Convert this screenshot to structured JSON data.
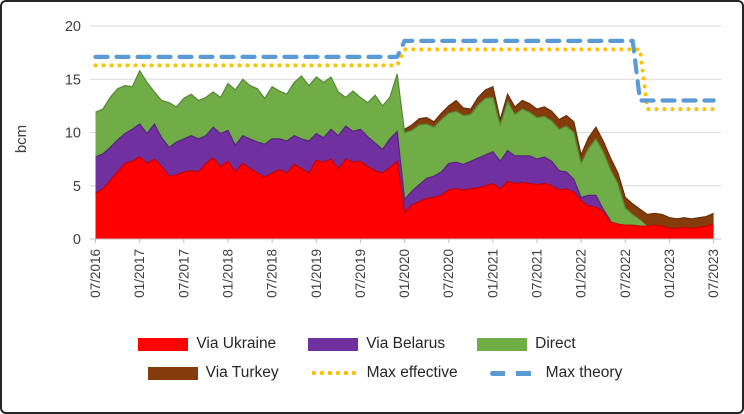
{
  "chart_data": {
    "type": "area",
    "stacked": true,
    "ylabel": "bcm",
    "ylim": [
      0,
      20
    ],
    "yticks": [
      0,
      5,
      10,
      15,
      20
    ],
    "grid": true,
    "legend_position": "bottom",
    "x": [
      "07/2016",
      "08/2016",
      "09/2016",
      "10/2016",
      "11/2016",
      "12/2016",
      "01/2017",
      "02/2017",
      "03/2017",
      "04/2017",
      "05/2017",
      "06/2017",
      "07/2017",
      "08/2017",
      "09/2017",
      "10/2017",
      "11/2017",
      "12/2017",
      "01/2018",
      "02/2018",
      "03/2018",
      "04/2018",
      "05/2018",
      "06/2018",
      "07/2018",
      "08/2018",
      "09/2018",
      "10/2018",
      "11/2018",
      "12/2018",
      "01/2019",
      "02/2019",
      "03/2019",
      "04/2019",
      "05/2019",
      "06/2019",
      "07/2019",
      "08/2019",
      "09/2019",
      "10/2019",
      "11/2019",
      "12/2019",
      "01/2020",
      "02/2020",
      "03/2020",
      "04/2020",
      "05/2020",
      "06/2020",
      "07/2020",
      "08/2020",
      "09/2020",
      "10/2020",
      "11/2020",
      "12/2020",
      "01/2021",
      "02/2021",
      "03/2021",
      "04/2021",
      "05/2021",
      "06/2021",
      "07/2021",
      "08/2021",
      "09/2021",
      "10/2021",
      "11/2021",
      "12/2021",
      "01/2022",
      "02/2022",
      "03/2022",
      "04/2022",
      "05/2022",
      "06/2022",
      "07/2022",
      "08/2022",
      "09/2022",
      "10/2022",
      "11/2022",
      "12/2022",
      "01/2023",
      "02/2023",
      "03/2023",
      "04/2023",
      "05/2023",
      "06/2023",
      "07/2023"
    ],
    "x_tick_labels": [
      "07/2016",
      "01/2017",
      "07/2017",
      "01/2018",
      "07/2018",
      "01/2019",
      "07/2019",
      "01/2020",
      "07/2020",
      "01/2021",
      "07/2021",
      "01/2022",
      "07/2022",
      "01/2023",
      "07/2023"
    ],
    "x_tick_every": 6,
    "series": [
      {
        "name": "Via Ukraine",
        "type": "area",
        "color": "#FF0000",
        "values": [
          4.3,
          4.7,
          5.5,
          6.3,
          7.1,
          7.3,
          7.7,
          7.1,
          7.5,
          6.8,
          5.9,
          6.0,
          6.3,
          6.4,
          6.3,
          7.1,
          7.6,
          6.8,
          7.3,
          6.3,
          7.1,
          6.6,
          6.2,
          5.8,
          6.2,
          6.5,
          6.2,
          7.0,
          6.6,
          6.2,
          7.4,
          7.2,
          7.5,
          6.6,
          7.5,
          7.2,
          7.3,
          6.8,
          6.4,
          6.2,
          6.7,
          7.3,
          2.5,
          3.2,
          3.5,
          3.8,
          3.9,
          4.1,
          4.6,
          4.7,
          4.6,
          4.7,
          4.8,
          5.0,
          5.2,
          4.7,
          5.4,
          5.2,
          5.3,
          5.2,
          5.1,
          5.2,
          5.0,
          4.6,
          4.7,
          4.4,
          3.6,
          3.1,
          3.0,
          2.6,
          1.6,
          1.4,
          1.3,
          1.3,
          1.2,
          1.2,
          1.3,
          1.2,
          1.0,
          1.0,
          1.1,
          1.0,
          1.1,
          1.2,
          1.4
        ]
      },
      {
        "name": "Via Belarus",
        "type": "area",
        "color": "#7030A0",
        "values": [
          3.4,
          3.3,
          3.1,
          3.0,
          2.8,
          3.0,
          3.1,
          2.8,
          3.3,
          2.7,
          2.7,
          3.1,
          3.1,
          3.3,
          3.1,
          2.6,
          2.9,
          3.1,
          2.9,
          2.5,
          2.6,
          2.8,
          2.9,
          3.1,
          3.2,
          2.9,
          3.0,
          2.7,
          2.8,
          3.0,
          2.5,
          2.3,
          2.8,
          3.1,
          3.1,
          2.9,
          3.0,
          2.8,
          2.6,
          2.2,
          2.7,
          2.8,
          1.2,
          1.3,
          1.6,
          1.9,
          2.0,
          2.2,
          2.5,
          2.5,
          2.4,
          2.6,
          2.8,
          2.9,
          3.0,
          2.6,
          2.9,
          2.6,
          2.5,
          2.6,
          2.4,
          2.5,
          2.3,
          1.8,
          1.6,
          1.2,
          0.3,
          1.0,
          1.1,
          0.2,
          0.1,
          0,
          0,
          0,
          0,
          0,
          0,
          0,
          0,
          0,
          0,
          0,
          0,
          0,
          0
        ]
      },
      {
        "name": "Direct",
        "type": "area",
        "color": "#70AD47",
        "values": [
          4.2,
          4.2,
          4.7,
          4.8,
          4.5,
          4.0,
          5.0,
          4.8,
          3.0,
          3.5,
          4.2,
          3.3,
          3.8,
          3.9,
          3.6,
          3.6,
          3.3,
          3.4,
          4.4,
          5.2,
          5.3,
          5.0,
          5.0,
          4.3,
          4.9,
          4.5,
          4.4,
          5.0,
          5.9,
          5.2,
          5.3,
          5.2,
          4.9,
          4.1,
          2.7,
          3.8,
          3.0,
          3.2,
          4.5,
          4.1,
          3.9,
          5.4,
          6.3,
          5.7,
          5.6,
          5.1,
          4.6,
          4.9,
          4.7,
          4.8,
          4.6,
          4.4,
          5.0,
          5.3,
          5.1,
          3.4,
          4.6,
          3.9,
          4.4,
          4.1,
          3.9,
          3.8,
          3.8,
          3.9,
          4.3,
          4.4,
          3.2,
          4.4,
          5.3,
          5.4,
          4.8,
          3.8,
          1.6,
          1.0,
          0.6,
          0,
          0,
          0,
          0,
          0,
          0,
          0,
          0,
          0,
          0
        ]
      },
      {
        "name": "Via Turkey",
        "type": "area",
        "color": "#843C0C",
        "values": [
          0,
          0,
          0,
          0,
          0,
          0,
          0,
          0,
          0,
          0,
          0,
          0,
          0,
          0,
          0,
          0,
          0,
          0,
          0,
          0,
          0,
          0,
          0,
          0,
          0,
          0,
          0,
          0,
          0,
          0,
          0,
          0,
          0,
          0,
          0,
          0,
          0,
          0,
          0,
          0,
          0,
          0,
          0.3,
          0.5,
          0.6,
          0.6,
          0.5,
          0.6,
          0.7,
          1.0,
          0.7,
          0.5,
          0.7,
          0.8,
          1.0,
          0.5,
          0.7,
          0.7,
          0.8,
          0.8,
          0.8,
          0.9,
          0.9,
          0.9,
          1.0,
          1.0,
          0.8,
          1.0,
          1.1,
          1.0,
          1.1,
          1.0,
          1.0,
          1.0,
          1.0,
          1.1,
          1.1,
          1.1,
          1.0,
          0.9,
          0.9,
          0.9,
          0.9,
          0.9,
          1.0
        ]
      },
      {
        "name": "Max effective",
        "type": "line",
        "style": "dotted",
        "color": "#FFC000",
        "values": [
          16.3,
          16.3,
          16.3,
          16.3,
          16.3,
          16.3,
          16.3,
          16.3,
          16.3,
          16.3,
          16.3,
          16.3,
          16.3,
          16.3,
          16.3,
          16.3,
          16.3,
          16.3,
          16.3,
          16.3,
          16.3,
          16.3,
          16.3,
          16.3,
          16.3,
          16.3,
          16.3,
          16.3,
          16.3,
          16.3,
          16.3,
          16.3,
          16.3,
          16.3,
          16.3,
          16.3,
          16.3,
          16.3,
          16.3,
          16.3,
          16.3,
          16.3,
          17.8,
          17.8,
          17.8,
          17.8,
          17.8,
          17.8,
          17.8,
          17.8,
          17.8,
          17.8,
          17.8,
          17.8,
          17.8,
          17.8,
          17.8,
          17.8,
          17.8,
          17.8,
          17.8,
          17.8,
          17.8,
          17.8,
          17.8,
          17.8,
          17.8,
          17.8,
          17.8,
          17.8,
          17.8,
          17.8,
          17.8,
          17.8,
          17.8,
          12.2,
          12.2,
          12.2,
          12.2,
          12.2,
          12.2,
          12.2,
          12.2,
          12.2,
          12.2
        ]
      },
      {
        "name": "Max theory",
        "type": "line",
        "style": "dashed",
        "color": "#5B9BD5",
        "values": [
          17.1,
          17.1,
          17.1,
          17.1,
          17.1,
          17.1,
          17.1,
          17.1,
          17.1,
          17.1,
          17.1,
          17.1,
          17.1,
          17.1,
          17.1,
          17.1,
          17.1,
          17.1,
          17.1,
          17.1,
          17.1,
          17.1,
          17.1,
          17.1,
          17.1,
          17.1,
          17.1,
          17.1,
          17.1,
          17.1,
          17.1,
          17.1,
          17.1,
          17.1,
          17.1,
          17.1,
          17.1,
          17.1,
          17.1,
          17.1,
          17.1,
          17.1,
          18.6,
          18.6,
          18.6,
          18.6,
          18.6,
          18.6,
          18.6,
          18.6,
          18.6,
          18.6,
          18.6,
          18.6,
          18.6,
          18.6,
          18.6,
          18.6,
          18.6,
          18.6,
          18.6,
          18.6,
          18.6,
          18.6,
          18.6,
          18.6,
          18.6,
          18.6,
          18.6,
          18.6,
          18.6,
          18.6,
          18.6,
          18.6,
          13.0,
          13.0,
          13.0,
          13.0,
          13.0,
          13.0,
          13.0,
          13.0,
          13.0,
          13.0,
          13.0
        ]
      }
    ]
  }
}
